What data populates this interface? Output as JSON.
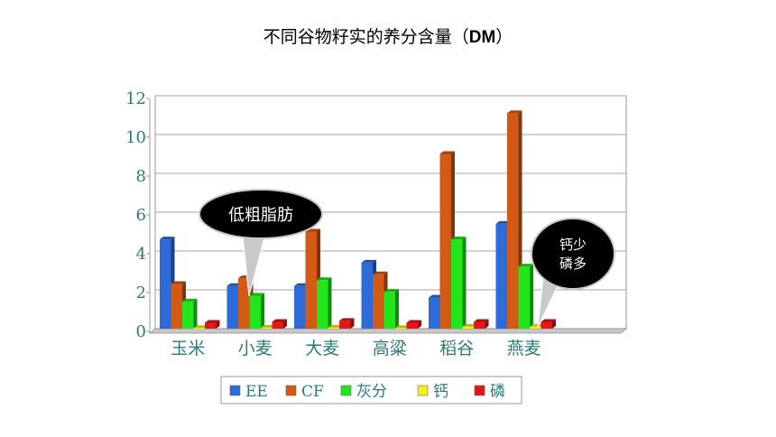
{
  "title": "不同谷物籽实的养分含量（",
  "title_bold": "DM",
  "title_end": "）",
  "chart_data": {
    "type": "bar",
    "title": "不同谷物籽实的养分含量（DM）",
    "categories": [
      "玉米",
      "小麦",
      "大麦",
      "高粱",
      "稻谷",
      "燕麦"
    ],
    "series": [
      {
        "name": "EE",
        "color": "#2f6bd8",
        "values": [
          4.6,
          2.2,
          2.2,
          3.4,
          1.6,
          5.4
        ]
      },
      {
        "name": "CF",
        "color": "#d35a14",
        "values": [
          2.3,
          2.6,
          5.0,
          2.8,
          9.0,
          11.1
        ]
      },
      {
        "name": "灰分",
        "color": "#22e51c",
        "values": [
          1.4,
          1.7,
          2.5,
          1.9,
          4.6,
          3.2
        ]
      },
      {
        "name": "钙",
        "color": "#f2f21a",
        "values": [
          0.03,
          0.05,
          0.05,
          0.03,
          0.1,
          0.1
        ]
      },
      {
        "name": "磷",
        "color": "#e01818",
        "values": [
          0.3,
          0.35,
          0.4,
          0.3,
          0.35,
          0.35
        ]
      }
    ],
    "yticks": [
      "0",
      "2",
      "4",
      "6",
      "8",
      "10",
      "12"
    ],
    "ylim": [
      0,
      12
    ],
    "grid": true,
    "legend": "bottom"
  },
  "callouts": [
    {
      "lines": [
        "低粗脂肪"
      ]
    },
    {
      "lines": [
        "钙少",
        "磷多"
      ]
    }
  ]
}
